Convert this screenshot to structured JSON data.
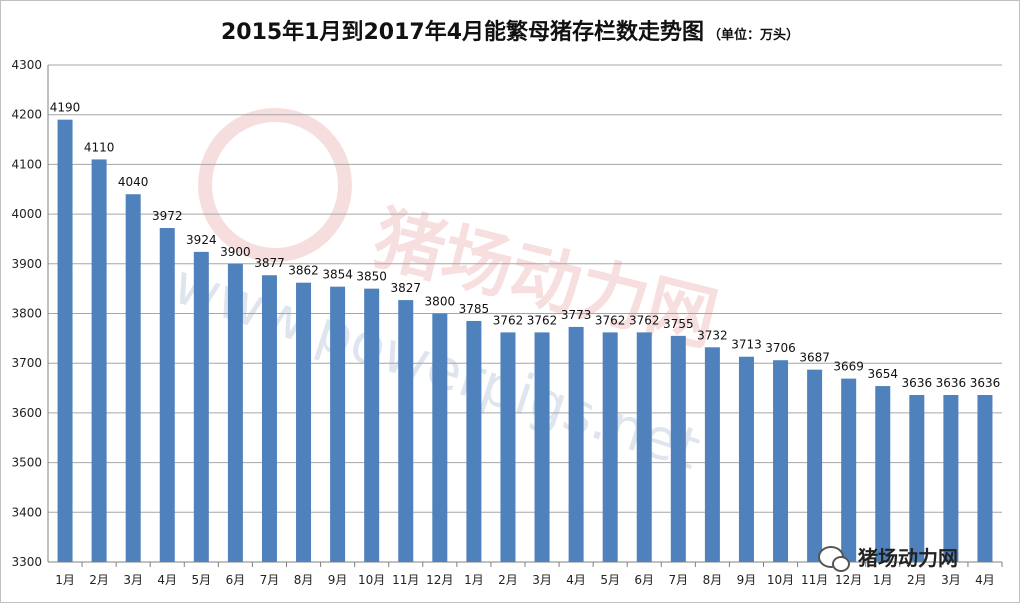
{
  "title": "2015年1月到2017年4月能繁母猪存栏数走势图",
  "unit_label": "（单位：万头）",
  "watermark_text": "猪场动力网",
  "watermark_url": "www.powerpigs.net",
  "brand_label": "猪场动力网",
  "colors": {
    "bar": "#4F81BD",
    "grid": "#a6a6a6",
    "axis": "#808080"
  },
  "chart_data": {
    "type": "bar",
    "categories": [
      "1月",
      "2月",
      "3月",
      "4月",
      "5月",
      "6月",
      "7月",
      "8月",
      "9月",
      "10月",
      "11月",
      "12月",
      "1月",
      "2月",
      "3月",
      "4月",
      "5月",
      "6月",
      "7月",
      "8月",
      "9月",
      "10月",
      "11月",
      "12月",
      "1月",
      "2月",
      "3月",
      "4月"
    ],
    "values": [
      4190,
      4110,
      4040,
      3972,
      3924,
      3900,
      3877,
      3862,
      3854,
      3850,
      3827,
      3800,
      3785,
      3762,
      3762,
      3773,
      3762,
      3762,
      3755,
      3732,
      3713,
      3706,
      3687,
      3669,
      3654,
      3636,
      3636,
      3636
    ],
    "ylim": [
      3300,
      4300
    ],
    "yticks": [
      3300,
      3400,
      3500,
      3600,
      3700,
      3800,
      3900,
      4000,
      4100,
      4200,
      4300
    ],
    "grid": true,
    "xlabel": "",
    "ylabel": ""
  }
}
